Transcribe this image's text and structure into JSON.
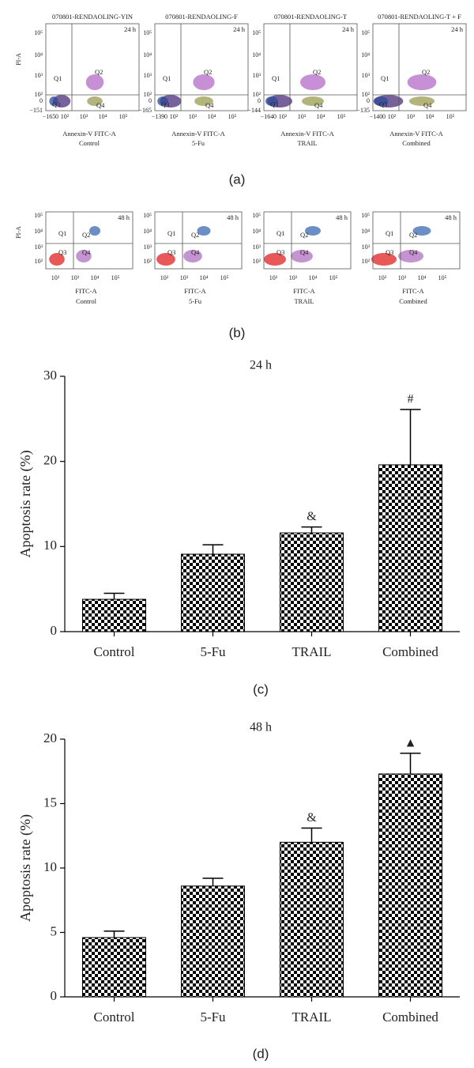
{
  "flow_panels": [
    {
      "caption": "(a)",
      "time": "24 h",
      "y_label": "PI-A",
      "x_label": "Annexin-V FITC-A",
      "quadrants": [
        "Q1",
        "Q2",
        "Q3",
        "Q4"
      ],
      "plots": [
        {
          "title": "070801-RENDAOLING-YIN",
          "group": "Control",
          "yticks": [
            "10⁵",
            "10⁴",
            "10³",
            "10²",
            "0",
            "−151"
          ],
          "xticks": [
            "−165",
            "0",
            "10²",
            "10³",
            "10⁴",
            "10⁵"
          ]
        },
        {
          "title": "070801-RENDAOLING-F",
          "group": "5-Fu",
          "yticks": [
            "10⁵",
            "10⁴",
            "10³",
            "10²",
            "0",
            "−165"
          ],
          "xticks": [
            "−139",
            "0",
            "10²",
            "10³",
            "10⁴",
            "10⁵"
          ]
        },
        {
          "title": "070801-RENDAOLING-T",
          "group": "TRAIL",
          "yticks": [
            "10⁵",
            "10⁴",
            "10³",
            "10²",
            "0",
            "−144"
          ],
          "xticks": [
            "−164",
            "0",
            "10²",
            "10³",
            "10⁴",
            "10⁵"
          ]
        },
        {
          "title": "070801-RENDAOLING-T + F",
          "group": "Combined",
          "yticks": [
            "10⁵",
            "10⁴",
            "10³",
            "10²",
            "0",
            "−135"
          ],
          "xticks": [
            "−140",
            "0",
            "10²",
            "10³",
            "10⁴",
            "10⁵"
          ]
        }
      ]
    },
    {
      "caption": "(b)",
      "time": "48 h",
      "y_label": "PI-A",
      "x_label": "FITC-A",
      "quadrants": [
        "Q1",
        "Q2",
        "Q3",
        "Q4"
      ],
      "plots": [
        {
          "group": "Control",
          "yticks": [
            "10⁵",
            "10⁴",
            "10³",
            "10²"
          ],
          "xticks": [
            "10²",
            "10³",
            "10⁴",
            "10⁵"
          ]
        },
        {
          "group": "5-Fu",
          "yticks": [
            "10⁵",
            "10⁴",
            "10³",
            "10²"
          ],
          "xticks": [
            "10²",
            "10³",
            "10⁴",
            "10⁵"
          ]
        },
        {
          "group": "TRAIL",
          "yticks": [
            "10⁵",
            "10⁴",
            "10³",
            "10²"
          ],
          "xticks": [
            "10²",
            "10³",
            "10⁴",
            "10⁵"
          ]
        },
        {
          "group": "Combined",
          "yticks": [
            "10⁵",
            "10⁴",
            "10³",
            "10²"
          ],
          "xticks": [
            "10²",
            "10³",
            "10⁴",
            "10⁵"
          ]
        }
      ]
    }
  ],
  "chart_data": [
    {
      "type": "bar",
      "title": "24 h",
      "caption": "(c)",
      "y_label": "Apoptosis rate (%)",
      "categories": [
        "Control",
        "5-Fu",
        "TRAIL",
        "Combined"
      ],
      "values": [
        3.8,
        9.1,
        11.6,
        19.6
      ],
      "errors": [
        0.7,
        1.1,
        0.7,
        6.5
      ],
      "annotations": [
        null,
        null,
        "&",
        "#"
      ],
      "ylim": [
        0,
        30
      ],
      "yticks": [
        0,
        10,
        20,
        30
      ],
      "color": "#000000"
    },
    {
      "type": "bar",
      "title": "48 h",
      "caption": "(d)",
      "y_label": "Apoptosis rate (%)",
      "categories": [
        "Control",
        "5-Fu",
        "TRAIL",
        "Combined"
      ],
      "values": [
        4.6,
        8.6,
        12.0,
        17.3
      ],
      "errors": [
        0.5,
        0.6,
        1.1,
        1.6
      ],
      "annotations": [
        null,
        null,
        "&",
        "▲"
      ],
      "ylim": [
        0,
        20
      ],
      "yticks": [
        0,
        5,
        10,
        15,
        20
      ],
      "color": "#000000"
    }
  ]
}
